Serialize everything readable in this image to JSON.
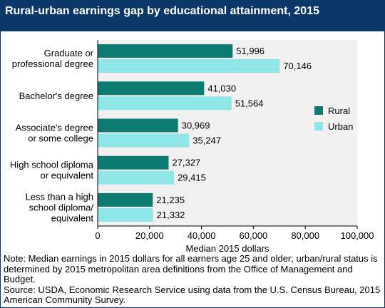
{
  "title": "Rural-urban earnings gap by educational attainment, 2015",
  "note": "Note: Median earnings in 2015 dollars for all earners age 25 and older; urban/rural status is determined by 2015 metropolitan area definitions from the Office of Management and Budget.",
  "source": "Source: USDA, Economic Research Service using data from the U.S. Census Bureau, 2015 American Community Survey.",
  "chart_data": {
    "type": "bar",
    "orientation": "horizontal",
    "title": "Rural-urban earnings gap by educational attainment, 2015",
    "categories": [
      [
        "Graduate or",
        "professional degree"
      ],
      [
        "Bachelor's degree"
      ],
      [
        "Associate's degree",
        "or some college"
      ],
      [
        "High school diploma",
        "or equivalent"
      ],
      [
        "Less than a high",
        "school diploma/",
        "equivalent"
      ]
    ],
    "series": [
      {
        "name": "Rural",
        "color": "#0e7b72",
        "values": [
          51996,
          41030,
          30969,
          27327,
          21235
        ]
      },
      {
        "name": "Urban",
        "color": "#8ee6e6",
        "values": [
          70146,
          51564,
          35247,
          29415,
          21332
        ]
      }
    ],
    "value_labels": {
      "Rural": [
        "51,996",
        "41,030",
        "30,969",
        "27,327",
        "21,235"
      ],
      "Urban": [
        "70,146",
        "51,564",
        "35,247",
        "29,415",
        "21,332"
      ]
    },
    "xlabel": "Median 2015 dollars",
    "xlim": [
      0,
      100000
    ],
    "xticks": [
      0,
      20000,
      40000,
      60000,
      80000,
      100000
    ],
    "xtick_labels": [
      "0",
      "20,000",
      "40,000",
      "60,000",
      "80,000",
      "100,000"
    ],
    "grid": false,
    "plot_background": "#f0f0f0",
    "legend_position": "right"
  }
}
